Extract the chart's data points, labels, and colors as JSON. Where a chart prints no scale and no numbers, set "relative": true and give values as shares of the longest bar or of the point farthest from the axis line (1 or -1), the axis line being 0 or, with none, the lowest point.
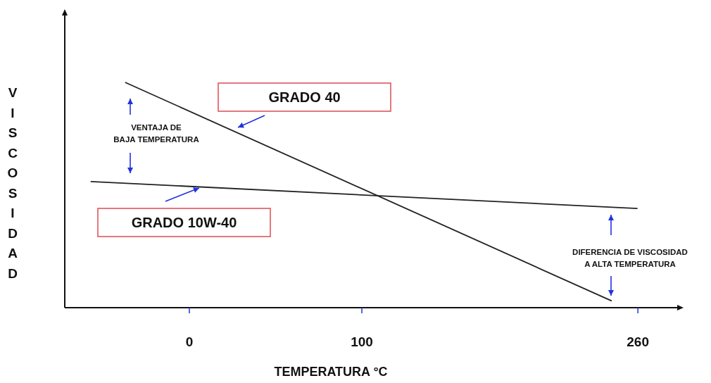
{
  "chart_data": {
    "type": "line",
    "relative": true,
    "xlabel": "TEMPERATURA °C",
    "ylabel": "VISCOSIDAD",
    "xlim": [
      -72,
      283
    ],
    "xticks": [
      0,
      100,
      260
    ],
    "series": [
      {
        "name": "GRADO 40",
        "color": "#222222",
        "x": [
          -37,
          245
        ],
        "values": [
          1,
          0.03
        ]
      },
      {
        "name": "GRADO 10W-40",
        "color": "#222222",
        "x": [
          -57,
          260
        ],
        "values": [
          0.56,
          0.44
        ]
      }
    ],
    "annotations": [
      "VENTAJA DE BAJA TEMPERATURA",
      "DIFERENCIA DE VISCOSIDAD A ALTA TEMPERATURA"
    ],
    "grid": false,
    "marker": "none",
    "line_style": "solid"
  }
}
